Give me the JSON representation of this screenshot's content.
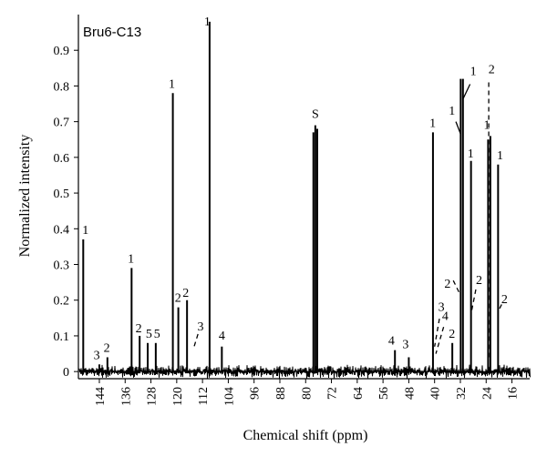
{
  "chart_data": {
    "type": "line",
    "title": "Bru6-C13",
    "xlabel": "Chemical shift (ppm)",
    "ylabel": "Normalized intensity",
    "x_reversed": true,
    "xlim": [
      150.5,
      10.5
    ],
    "ylim": [
      -0.02,
      1.0
    ],
    "x_ticks": [
      144,
      136,
      128,
      120,
      112,
      104,
      96,
      88,
      80,
      72,
      64,
      56,
      48,
      40,
      32,
      24,
      16
    ],
    "y_ticks": [
      0,
      0.1,
      0.2,
      0.3,
      0.4,
      0.5,
      0.6,
      0.7,
      0.8,
      0.9
    ],
    "y_tick_labels": [
      "0",
      "0.1",
      "0.2",
      "0.3",
      "0.4",
      "0.5",
      "0.6",
      "0.7",
      "0.8",
      "0.9"
    ],
    "grid": false,
    "peaks": [
      {
        "x": 149.0,
        "y": 0.37
      },
      {
        "x": 144.0,
        "y": 0.02
      },
      {
        "x": 141.5,
        "y": 0.04
      },
      {
        "x": 134.0,
        "y": 0.29
      },
      {
        "x": 131.5,
        "y": 0.1
      },
      {
        "x": 129.0,
        "y": 0.08
      },
      {
        "x": 126.5,
        "y": 0.08
      },
      {
        "x": 121.2,
        "y": 0.78
      },
      {
        "x": 119.5,
        "y": 0.18
      },
      {
        "x": 116.8,
        "y": 0.2
      },
      {
        "x": 109.8,
        "y": 0.98
      },
      {
        "x": 106.0,
        "y": 0.07
      },
      {
        "x": 77.6,
        "y": 0.67
      },
      {
        "x": 77.0,
        "y": 0.69
      },
      {
        "x": 76.4,
        "y": 0.68
      },
      {
        "x": 52.3,
        "y": 0.06
      },
      {
        "x": 48.0,
        "y": 0.04
      },
      {
        "x": 40.5,
        "y": 0.67
      },
      {
        "x": 34.5,
        "y": 0.08
      },
      {
        "x": 31.9,
        "y": 0.82
      },
      {
        "x": 31.2,
        "y": 0.82
      },
      {
        "x": 28.7,
        "y": 0.59
      },
      {
        "x": 23.4,
        "y": 0.65
      },
      {
        "x": 22.7,
        "y": 0.66
      },
      {
        "x": 20.3,
        "y": 0.58
      }
    ],
    "annotations": [
      {
        "text": "1",
        "x": 148.3,
        "y": 0.385
      },
      {
        "text": "3",
        "x": 144.8,
        "y": 0.035
      },
      {
        "text": "2",
        "x": 141.7,
        "y": 0.055
      },
      {
        "text": "1",
        "x": 134.2,
        "y": 0.305
      },
      {
        "text": "2",
        "x": 131.8,
        "y": 0.11
      },
      {
        "text": "5",
        "x": 128.6,
        "y": 0.095
      },
      {
        "text": "5",
        "x": 126.1,
        "y": 0.095
      },
      {
        "text": "1",
        "x": 121.5,
        "y": 0.795
      },
      {
        "text": "2",
        "x": 119.6,
        "y": 0.195
      },
      {
        "text": "2",
        "x": 117.2,
        "y": 0.21
      },
      {
        "text": "3",
        "x": 112.6,
        "y": 0.115
      },
      {
        "text": "1",
        "x": 110.5,
        "y": 0.97
      },
      {
        "text": "4",
        "x": 106.0,
        "y": 0.09
      },
      {
        "text": "S",
        "x": 77.0,
        "y": 0.71
      },
      {
        "text": "4",
        "x": 53.4,
        "y": 0.075
      },
      {
        "text": "3",
        "x": 49.0,
        "y": 0.065
      },
      {
        "text": "1",
        "x": 40.6,
        "y": 0.685
      },
      {
        "text": "3",
        "x": 37.9,
        "y": 0.17
      },
      {
        "text": "4",
        "x": 36.7,
        "y": 0.145
      },
      {
        "text": "2",
        "x": 34.6,
        "y": 0.095
      },
      {
        "text": "2",
        "x": 36.0,
        "y": 0.235
      },
      {
        "text": "1",
        "x": 34.6,
        "y": 0.72
      },
      {
        "text": "1",
        "x": 28.0,
        "y": 0.83
      },
      {
        "text": "2",
        "x": 22.3,
        "y": 0.835
      },
      {
        "text": "1",
        "x": 28.8,
        "y": 0.6
      },
      {
        "text": "2",
        "x": 26.2,
        "y": 0.245
      },
      {
        "text": "1",
        "x": 23.8,
        "y": 0.68
      },
      {
        "text": "1",
        "x": 19.7,
        "y": 0.595
      },
      {
        "text": "2",
        "x": 18.3,
        "y": 0.192
      }
    ],
    "connectors": [
      {
        "style": "dash",
        "from": [
          113.4,
          0.105
        ],
        "to": [
          114.6,
          0.07
        ]
      },
      {
        "style": "dash",
        "from": [
          38.5,
          0.148
        ],
        "to": [
          40.0,
          0.07
        ]
      },
      {
        "style": "dash",
        "from": [
          37.2,
          0.125
        ],
        "to": [
          39.6,
          0.05
        ]
      },
      {
        "style": "dash",
        "from": [
          34.2,
          0.255
        ],
        "to": [
          32.3,
          0.22
        ]
      },
      {
        "style": "solid",
        "from": [
          33.4,
          0.7
        ],
        "to": [
          31.9,
          0.665
        ]
      },
      {
        "style": "solid",
        "from": [
          29.0,
          0.805
        ],
        "to": [
          31.1,
          0.765
        ]
      },
      {
        "style": "dash",
        "from": [
          27.2,
          0.23
        ],
        "to": [
          28.5,
          0.17
        ]
      },
      {
        "style": "dash",
        "from": [
          23.2,
          0.81
        ],
        "to": [
          23.2,
          0.04
        ]
      },
      {
        "style": "dash",
        "from": [
          19.2,
          0.188
        ],
        "to": [
          20.2,
          0.17
        ]
      }
    ]
  }
}
